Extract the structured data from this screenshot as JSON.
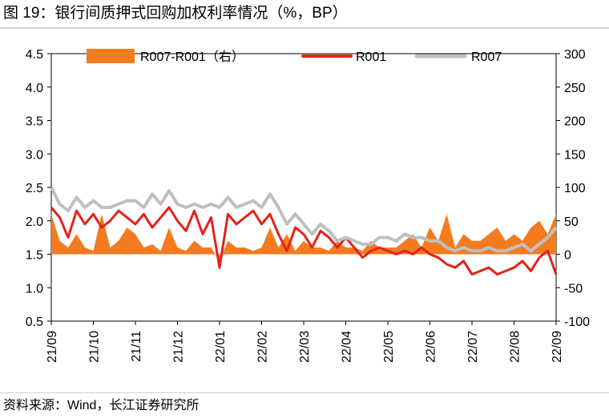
{
  "header": {
    "title": "图 19：银行间质押式回购加权利率情况（%，BP）"
  },
  "footer": {
    "source": "资料来源：Wind，长江证券研究所"
  },
  "chart_data": {
    "type": "line",
    "x_tick_labels": [
      "21/09",
      "21/10",
      "21/11",
      "21/12",
      "22/01",
      "22/02",
      "22/03",
      "22/04",
      "22/05",
      "22/06",
      "22/07",
      "22/08",
      "22/09"
    ],
    "x": [
      0,
      0.2,
      0.4,
      0.6,
      0.8,
      1,
      1.2,
      1.4,
      1.6,
      1.8,
      2,
      2.2,
      2.4,
      2.6,
      2.8,
      3,
      3.2,
      3.4,
      3.6,
      3.8,
      4,
      4.2,
      4.4,
      4.6,
      4.8,
      5,
      5.2,
      5.4,
      5.6,
      5.8,
      6,
      6.2,
      6.4,
      6.6,
      6.8,
      7,
      7.2,
      7.4,
      7.6,
      7.8,
      8,
      8.2,
      8.4,
      8.6,
      8.8,
      9,
      9.2,
      9.4,
      9.6,
      9.8,
      10,
      10.2,
      10.4,
      10.6,
      10.8,
      11,
      11.2,
      11.4,
      11.6,
      11.8,
      12
    ],
    "y_left": {
      "ticks": [
        0.5,
        1.0,
        1.5,
        2.0,
        2.5,
        3.0,
        3.5,
        4.0,
        4.5
      ],
      "ylim": [
        0.5,
        4.5
      ]
    },
    "y_right": {
      "ticks": [
        -100,
        -50,
        0,
        50,
        100,
        150,
        200,
        250,
        300
      ],
      "ylim": [
        -100,
        300
      ]
    },
    "series": [
      {
        "name": "R007-R001（右）",
        "axis": "right",
        "kind": "area",
        "color": "#F47B20",
        "values": [
          60,
          20,
          10,
          30,
          10,
          5,
          60,
          10,
          20,
          40,
          30,
          10,
          15,
          5,
          40,
          10,
          5,
          20,
          10,
          10,
          -10,
          20,
          10,
          10,
          5,
          10,
          40,
          10,
          30,
          5,
          20,
          10,
          10,
          5,
          20,
          10,
          10,
          5,
          20,
          10,
          10,
          10,
          20,
          30,
          10,
          40,
          20,
          60,
          10,
          30,
          20,
          20,
          30,
          40,
          20,
          30,
          20,
          40,
          50,
          30,
          60
        ]
      },
      {
        "name": "R001",
        "axis": "left",
        "kind": "line",
        "color": "#E2231A",
        "values": [
          2.2,
          2.05,
          1.75,
          2.15,
          1.95,
          2.1,
          1.9,
          2.0,
          2.15,
          2.05,
          1.95,
          2.1,
          1.9,
          2.05,
          2.2,
          2.0,
          1.85,
          2.15,
          1.8,
          2.05,
          1.3,
          2.1,
          1.95,
          2.05,
          2.15,
          1.95,
          2.1,
          1.8,
          1.55,
          1.9,
          1.8,
          1.6,
          1.85,
          1.75,
          1.6,
          1.75,
          1.6,
          1.45,
          1.55,
          1.6,
          1.55,
          1.5,
          1.55,
          1.5,
          1.6,
          1.5,
          1.45,
          1.35,
          1.3,
          1.4,
          1.2,
          1.25,
          1.3,
          1.2,
          1.25,
          1.3,
          1.4,
          1.25,
          1.45,
          1.55,
          1.2
        ]
      },
      {
        "name": "R007",
        "axis": "left",
        "kind": "line",
        "color": "#BFBFBF",
        "values": [
          2.5,
          2.25,
          2.15,
          2.35,
          2.2,
          2.3,
          2.2,
          2.2,
          2.25,
          2.3,
          2.3,
          2.2,
          2.4,
          2.25,
          2.45,
          2.25,
          2.2,
          2.25,
          2.2,
          2.25,
          2.2,
          2.35,
          2.2,
          2.25,
          2.3,
          2.2,
          2.4,
          2.2,
          1.95,
          2.1,
          1.95,
          1.8,
          1.95,
          1.85,
          1.7,
          1.75,
          1.7,
          1.65,
          1.65,
          1.75,
          1.75,
          1.7,
          1.8,
          1.75,
          1.75,
          1.7,
          1.7,
          1.6,
          1.55,
          1.6,
          1.55,
          1.55,
          1.6,
          1.55,
          1.55,
          1.6,
          1.65,
          1.55,
          1.65,
          1.75,
          1.9
        ]
      }
    ],
    "legend_position": "top",
    "grid": false
  }
}
